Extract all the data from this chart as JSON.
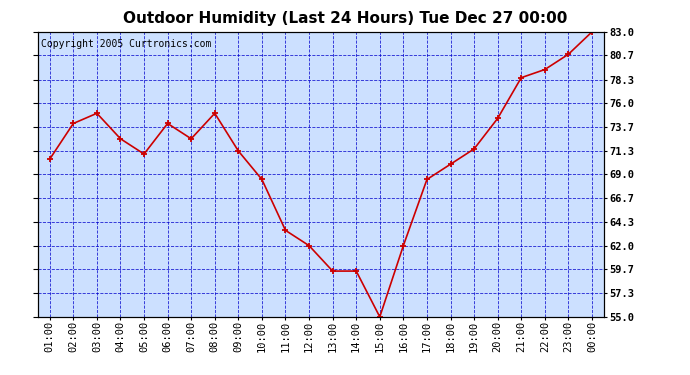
{
  "title": "Outdoor Humidity (Last 24 Hours) Tue Dec 27 00:00",
  "copyright": "Copyright 2005 Curtronics.com",
  "x_labels": [
    "01:00",
    "02:00",
    "03:00",
    "04:00",
    "05:00",
    "06:00",
    "07:00",
    "08:00",
    "09:00",
    "10:00",
    "11:00",
    "12:00",
    "13:00",
    "14:00",
    "15:00",
    "16:00",
    "17:00",
    "18:00",
    "19:00",
    "20:00",
    "21:00",
    "22:00",
    "23:00",
    "00:00"
  ],
  "y_values": [
    70.5,
    74.0,
    75.0,
    72.5,
    71.0,
    74.0,
    72.5,
    75.0,
    71.3,
    68.5,
    63.5,
    62.0,
    59.5,
    59.5,
    55.0,
    62.0,
    68.5,
    70.0,
    71.5,
    74.5,
    78.5,
    79.3,
    80.8,
    83.0
  ],
  "line_color": "#cc0000",
  "marker_color": "#cc0000",
  "bg_color": "#cce0ff",
  "outer_bg_color": "#ffffff",
  "grid_color": "#0000cc",
  "axis_color": "#000000",
  "title_color": "#000000",
  "tick_label_color": "#000000",
  "copyright_color": "#000000",
  "ylim_min": 55.0,
  "ylim_max": 83.0,
  "yticks": [
    55.0,
    57.3,
    59.7,
    62.0,
    64.3,
    66.7,
    69.0,
    71.3,
    73.7,
    76.0,
    78.3,
    80.7,
    83.0
  ],
  "title_fontsize": 11,
  "tick_fontsize": 7.5,
  "copyright_fontsize": 7,
  "marker_size": 5,
  "line_width": 1.2
}
